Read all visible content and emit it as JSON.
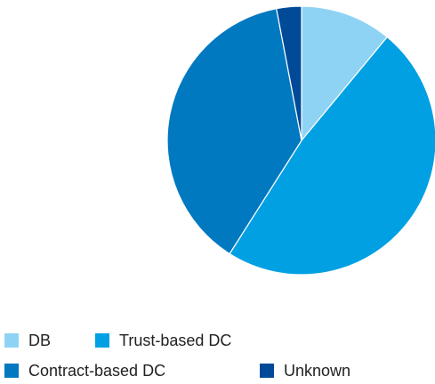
{
  "chart_data": {
    "type": "pie",
    "categories": [
      "DB",
      "Trust-based DC",
      "Contract-based DC",
      "Unknown"
    ],
    "values": [
      11,
      48,
      38,
      3
    ],
    "colors": [
      "#8fd3f4",
      "#00a0e3",
      "#0079c1",
      "#004a97"
    ]
  }
}
